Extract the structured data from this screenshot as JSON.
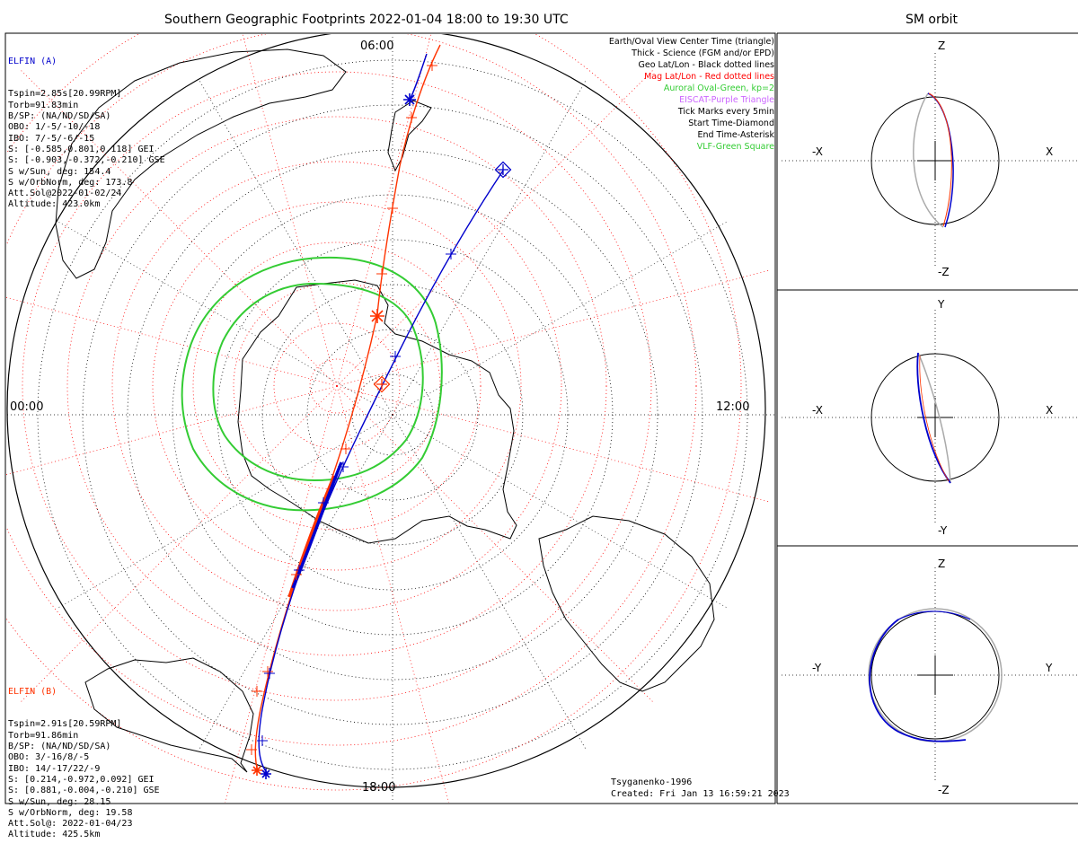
{
  "header": {
    "main_title": "Southern Geographic Footprints 2022-01-04 18:00 to 19:30 UTC",
    "sm_title": "SM orbit"
  },
  "elfin_a": {
    "name": "ELFIN (A)",
    "color": "#0000cc",
    "lines": [
      "Tspin=2.85s[20.99RPM]",
      "Torb=91.83min",
      "B/SP: (NA/ND/SD/SA)",
      "OBO: 1/-5/-10/-18",
      "IBO: 7/-5/-6/-15",
      "S: [-0.585,0.801,0.118] GEI",
      "S: [-0.903,-0.372,-0.210] GSE",
      "S w/Sun, deg: 154.4",
      "S w/OrbNorm, deg: 173.8",
      "Att.Sol@2022-01-02/24",
      "Altitude: 423.0km"
    ]
  },
  "elfin_b": {
    "name": "ELFIN (B)",
    "color": "#ff3300",
    "lines": [
      "Tspin=2.91s[20.59RPM]",
      "Torb=91.86min",
      "B/SP: (NA/ND/SD/SA)",
      "OBO: 3/-16/8/-5",
      "IBO: 14/-17/22/-9",
      "S: [0.214,-0.972,0.092] GEI",
      "S: [0.881,-0.004,-0.210] GSE",
      "S w/Sun, deg: 28.15",
      "S w/OrbNorm, deg: 19.58",
      "Att.Sol@: 2022-01-04/23",
      "Altitude: 425.5km"
    ]
  },
  "legend": [
    {
      "text": "Earth/Oval View Center Time (triangle)",
      "color": "#000000"
    },
    {
      "text": "Thick - Science (FGM and/or EPD)",
      "color": "#000000"
    },
    {
      "text": "Geo Lat/Lon - Black dotted lines",
      "color": "#000000"
    },
    {
      "text": "Mag Lat/Lon - Red dotted lines",
      "color": "#ff0000"
    },
    {
      "text": "Auroral Oval-Green, kp=2",
      "color": "#33cc33"
    },
    {
      "text": "EISCAT-Purple Triangle",
      "color": "#cc66ff"
    },
    {
      "text": "Tick Marks every 5min",
      "color": "#000000"
    },
    {
      "text": "Start Time-Diamond",
      "color": "#000000"
    },
    {
      "text": "End Time-Asterisk",
      "color": "#000000"
    },
    {
      "text": "VLF-Green Square",
      "color": "#33cc33"
    }
  ],
  "map_labels": {
    "top": "06:00",
    "left": "00:00",
    "right": "12:00",
    "bottom": "18:00"
  },
  "sm_panels": [
    {
      "top": "Z",
      "bottom": "-Z",
      "left": "-X",
      "right": "X"
    },
    {
      "top": "Y",
      "bottom": "-Y",
      "left": "-X",
      "right": "X"
    },
    {
      "top": "Z",
      "bottom": "-Z",
      "left": "-Y",
      "right": "Y"
    }
  ],
  "credits": {
    "author": "Tsyganenko-1996",
    "created": "Created: Fri Jan 13 16:59:21 2023"
  }
}
